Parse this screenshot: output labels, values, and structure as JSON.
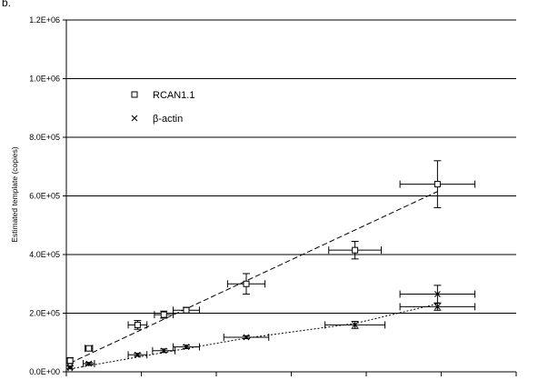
{
  "panel_label": "b.",
  "chart_data": {
    "type": "scatter",
    "ylabel": "Estimated template (copies)",
    "xlabel": "",
    "ylim": [
      0,
      1200000
    ],
    "xlim": [
      0,
      12
    ],
    "y_ticks": [
      0,
      200000,
      400000,
      600000,
      800000,
      1000000,
      1200000
    ],
    "y_tick_labels": [
      "0.0E+00",
      "2.0E+05",
      "4.0E+05",
      "6.0E+05",
      "8.0E+05",
      "1.0E+06",
      "1.2E+06"
    ],
    "x_ticks": [
      0,
      2,
      4,
      6,
      8,
      10,
      12
    ],
    "grid": "horizontal",
    "legend_position": "upper-left",
    "series": [
      {
        "name": "RCAN1.1",
        "marker": "square",
        "trend": "dashed",
        "points": [
          {
            "x": 0.1,
            "y": 38000,
            "xerr": 0.05,
            "yerr": 10000
          },
          {
            "x": 0.6,
            "y": 80000,
            "xerr": 0.1,
            "yerr": 8000
          },
          {
            "x": 1.9,
            "y": 160000,
            "xerr": 0.25,
            "yerr": 15000
          },
          {
            "x": 2.6,
            "y": 195000,
            "xerr": 0.25,
            "yerr": 12000
          },
          {
            "x": 3.2,
            "y": 210000,
            "xerr": 0.35,
            "yerr": 10000
          },
          {
            "x": 4.8,
            "y": 300000,
            "xerr": 0.5,
            "yerr": 35000
          },
          {
            "x": 7.7,
            "y": 415000,
            "xerr": 0.7,
            "yerr": 30000
          },
          {
            "x": 9.9,
            "y": 640000,
            "xerr": 1.0,
            "yerr": 80000
          }
        ],
        "trend_line": [
          [
            0.1,
            30000
          ],
          [
            9.9,
            615000
          ]
        ]
      },
      {
        "name": "β-actin",
        "marker": "x",
        "trend": "dotted",
        "points": [
          {
            "x": 0.1,
            "y": 15000,
            "xerr": 0.05,
            "yerr": 5000
          },
          {
            "x": 0.6,
            "y": 28000,
            "xerr": 0.15,
            "yerr": 4000
          },
          {
            "x": 1.9,
            "y": 58000,
            "xerr": 0.25,
            "yerr": 5000
          },
          {
            "x": 2.6,
            "y": 72000,
            "xerr": 0.3,
            "yerr": 6000
          },
          {
            "x": 3.2,
            "y": 85000,
            "xerr": 0.35,
            "yerr": 6000
          },
          {
            "x": 4.8,
            "y": 118000,
            "xerr": 0.6,
            "yerr": 5000
          },
          {
            "x": 7.7,
            "y": 160000,
            "xerr": 0.8,
            "yerr": 12000
          },
          {
            "x": 9.9,
            "y": 265000,
            "xerr": 1.0,
            "yerr": 30000
          },
          {
            "x": 9.9,
            "y": 222000,
            "xerr": 1.0,
            "yerr": 12000
          }
        ],
        "trend_line": [
          [
            0.1,
            10000
          ],
          [
            4.8,
            115000
          ],
          [
            7.7,
            165000
          ],
          [
            9.9,
            232000
          ]
        ]
      }
    ]
  }
}
